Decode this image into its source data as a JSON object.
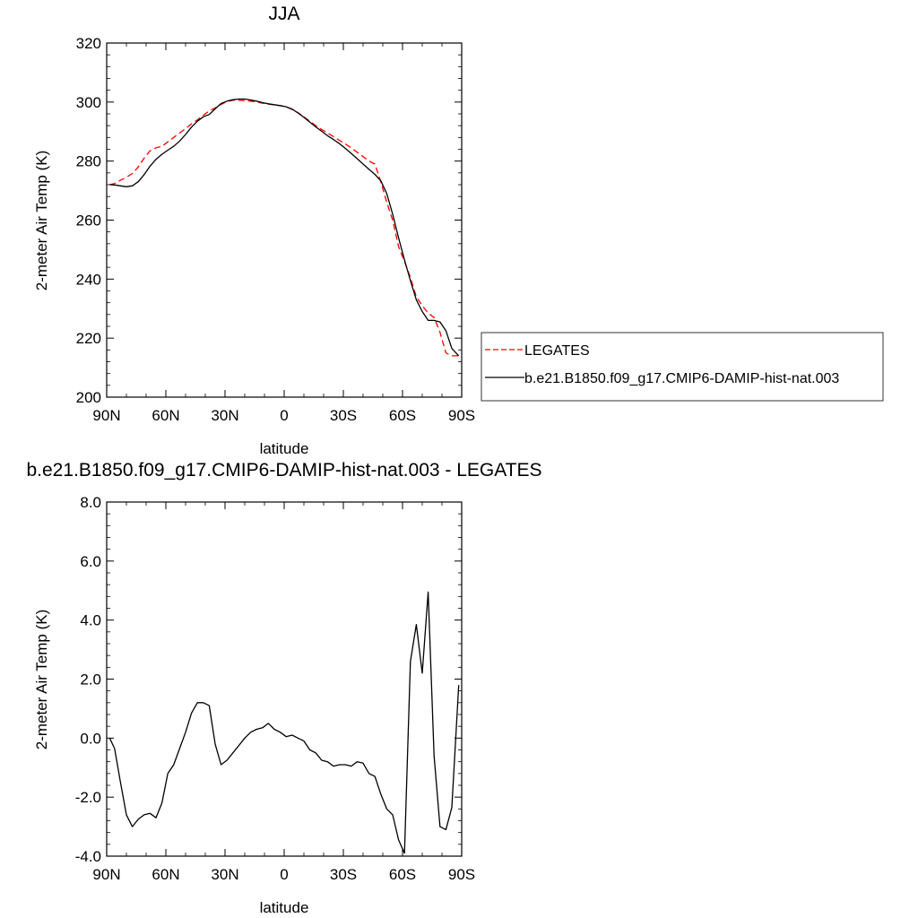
{
  "chart_data": [
    {
      "type": "line",
      "title": "JJA",
      "xlabel": "latitude",
      "ylabel": "2-meter Air Temp (K)",
      "xlim": [
        90,
        -90
      ],
      "ylim": [
        200,
        320
      ],
      "x_ticks": [
        {
          "value": 90,
          "label": "90N"
        },
        {
          "value": 60,
          "label": "60N"
        },
        {
          "value": 30,
          "label": "30N"
        },
        {
          "value": 0,
          "label": "0"
        },
        {
          "value": -30,
          "label": "30S"
        },
        {
          "value": -60,
          "label": "60S"
        },
        {
          "value": -90,
          "label": "90S"
        }
      ],
      "y_ticks": [
        {
          "value": 200,
          "label": "200"
        },
        {
          "value": 220,
          "label": "220"
        },
        {
          "value": 240,
          "label": "240"
        },
        {
          "value": 260,
          "label": "260"
        },
        {
          "value": 280,
          "label": "280"
        },
        {
          "value": 300,
          "label": "300"
        },
        {
          "value": 320,
          "label": "320"
        }
      ],
      "legend": {
        "placement": "right"
      },
      "series": [
        {
          "name": "LEGATES",
          "color": "#ff0000",
          "dash": "dashed",
          "x": [
            88.5,
            86,
            83,
            80,
            77,
            74,
            71,
            68,
            65,
            62,
            59,
            56,
            53,
            50,
            47,
            44,
            41,
            38,
            35,
            32,
            29,
            26,
            23,
            20,
            17,
            14,
            11,
            8,
            5,
            2,
            -1,
            -4,
            -7,
            -10,
            -13,
            -16,
            -19,
            -22,
            -25,
            -28,
            -31,
            -34,
            -37,
            -40,
            -43,
            -46,
            -49,
            -52,
            -55,
            -58,
            -61,
            -64,
            -67,
            -70,
            -73,
            -76,
            -79,
            -82,
            -85,
            -88.5
          ],
          "y": [
            272.0,
            272.4,
            273.5,
            274.5,
            275.8,
            278.0,
            281.0,
            283.5,
            284.5,
            285.0,
            286.5,
            288.0,
            289.5,
            291.0,
            292.6,
            294.0,
            295.5,
            297.0,
            298.0,
            299.2,
            300.2,
            300.6,
            300.6,
            300.5,
            300.3,
            300.0,
            299.6,
            299.3,
            299.0,
            298.8,
            298.4,
            297.5,
            296.4,
            295.0,
            293.5,
            292.0,
            290.7,
            289.5,
            288.3,
            287.0,
            285.8,
            284.5,
            283.0,
            281.5,
            280.0,
            279.0,
            273.0,
            266.0,
            260.0,
            251.0,
            246.0,
            240.5,
            234.0,
            231.0,
            228.5,
            227.0,
            222.0,
            215.0,
            214.0,
            214.0
          ]
        },
        {
          "name": "b.e21.B1850.f09_g17.CMIP6-DAMIP-hist-nat.003",
          "color": "#000000",
          "dash": "solid",
          "x": [
            88.5,
            86,
            83,
            80,
            77,
            74,
            71,
            68,
            65,
            62,
            59,
            56,
            53,
            50,
            47,
            44,
            41,
            38,
            35,
            32,
            29,
            26,
            23,
            20,
            17,
            14,
            11,
            8,
            5,
            2,
            -1,
            -4,
            -7,
            -10,
            -13,
            -16,
            -19,
            -22,
            -25,
            -28,
            -31,
            -34,
            -37,
            -40,
            -43,
            -46,
            -49,
            -52,
            -55,
            -58,
            -61,
            -64,
            -67,
            -70,
            -73,
            -76,
            -79,
            -82,
            -85,
            -88.5
          ],
          "y": [
            272.0,
            271.9,
            271.6,
            271.3,
            271.6,
            273.0,
            275.4,
            278.3,
            280.6,
            282.3,
            283.7,
            285.0,
            286.8,
            289.0,
            291.5,
            293.5,
            295.0,
            295.8,
            297.7,
            299.5,
            300.3,
            300.8,
            301.0,
            301.0,
            300.7,
            300.3,
            299.8,
            299.4,
            299.1,
            298.8,
            298.4,
            297.6,
            296.3,
            294.8,
            293.2,
            291.6,
            290.1,
            288.6,
            287.3,
            285.9,
            284.3,
            282.6,
            280.8,
            279.0,
            277.2,
            275.5,
            273.3,
            269.0,
            262.0,
            254.0,
            246.5,
            239.5,
            233.0,
            229.0,
            226.0,
            226.0,
            225.5,
            222.5,
            216.5,
            214.0
          ]
        }
      ]
    },
    {
      "type": "line",
      "title": "b.e21.B1850.f09_g17.CMIP6-DAMIP-hist-nat.003 - LEGATES",
      "xlabel": "latitude",
      "ylabel": "2-meter Air Temp (K)",
      "xlim": [
        90,
        -90
      ],
      "ylim": [
        -4.0,
        8.0
      ],
      "x_ticks": [
        {
          "value": 90,
          "label": "90N"
        },
        {
          "value": 60,
          "label": "60N"
        },
        {
          "value": 30,
          "label": "30N"
        },
        {
          "value": 0,
          "label": "0"
        },
        {
          "value": -30,
          "label": "30S"
        },
        {
          "value": -60,
          "label": "60S"
        },
        {
          "value": -90,
          "label": "90S"
        }
      ],
      "y_ticks": [
        {
          "value": -4,
          "label": "-4.0"
        },
        {
          "value": -2,
          "label": "-2.0"
        },
        {
          "value": 0,
          "label": "0.0"
        },
        {
          "value": 2,
          "label": "2.0"
        },
        {
          "value": 4,
          "label": "4.0"
        },
        {
          "value": 6,
          "label": "6.0"
        },
        {
          "value": 8,
          "label": "8.0"
        }
      ],
      "series": [
        {
          "color": "#000000",
          "dash": "solid",
          "x": [
            88.5,
            86,
            83,
            80,
            77,
            74,
            71,
            68,
            65,
            62,
            59,
            56,
            53,
            50,
            47,
            44,
            41,
            38,
            35,
            32,
            29,
            26,
            23,
            20,
            17,
            14,
            11,
            8,
            5,
            2,
            -1,
            -4,
            -7,
            -10,
            -13,
            -16,
            -19,
            -22,
            -25,
            -28,
            -31,
            -34,
            -37,
            -40,
            -43,
            -46,
            -49,
            -52,
            -55,
            -58,
            -61,
            -64,
            -67,
            -70,
            -73,
            -76,
            -79,
            -82,
            -85,
            -88.5
          ],
          "y": [
            0.0,
            -0.35,
            -1.5,
            -2.6,
            -3.0,
            -2.75,
            -2.6,
            -2.55,
            -2.7,
            -2.2,
            -1.2,
            -0.9,
            -0.35,
            0.2,
            0.85,
            1.2,
            1.2,
            1.1,
            -0.2,
            -0.9,
            -0.75,
            -0.5,
            -0.25,
            0.0,
            0.2,
            0.3,
            0.35,
            0.5,
            0.3,
            0.2,
            0.05,
            0.1,
            0.0,
            -0.1,
            -0.4,
            -0.5,
            -0.75,
            -0.8,
            -0.95,
            -0.9,
            -0.9,
            -0.95,
            -0.8,
            -0.85,
            -1.2,
            -1.3,
            -1.9,
            -2.4,
            -2.6,
            -3.45,
            -3.9,
            2.6,
            3.85,
            2.2,
            4.95,
            -0.6,
            -3.0,
            -3.1,
            -2.35,
            1.8
          ]
        }
      ]
    }
  ]
}
